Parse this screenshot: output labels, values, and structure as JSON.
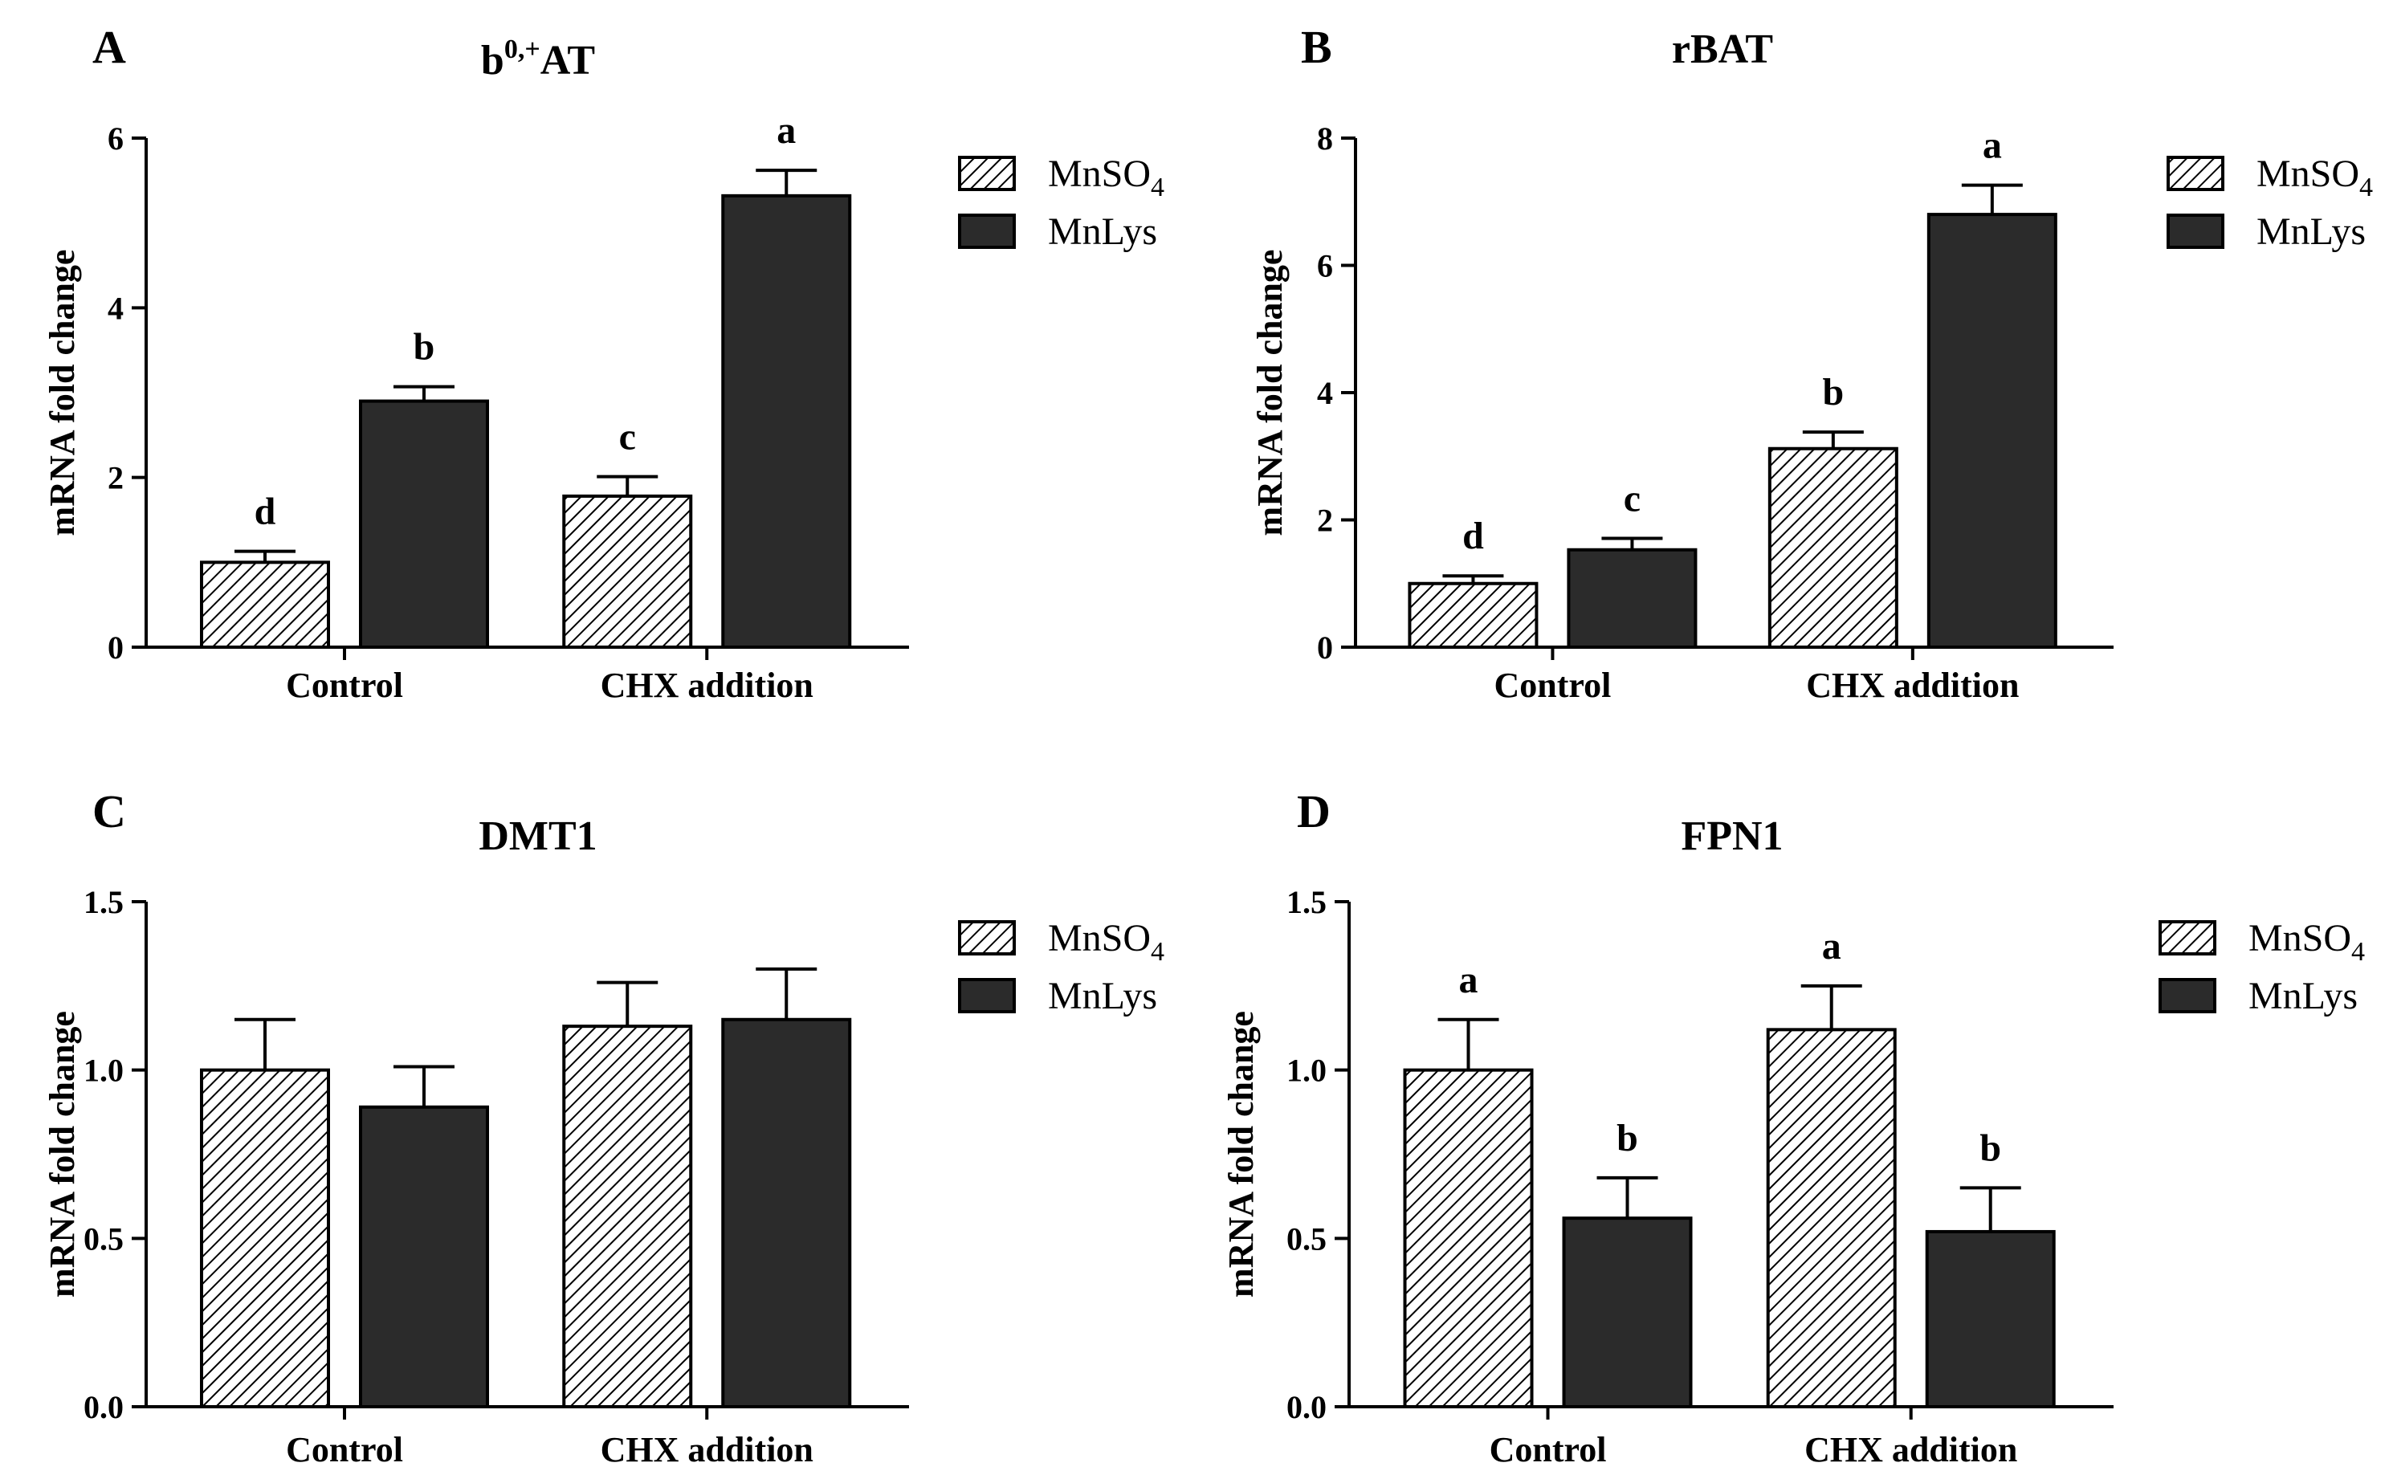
{
  "colors": {
    "ink": "#000000",
    "solid_fill": "#2b2b2b",
    "hatch_line": "#000000",
    "background": "#ffffff"
  },
  "legend": {
    "hatched": {
      "text": "MnSO",
      "subscript": "4"
    },
    "solid": {
      "text": "MnLys"
    }
  },
  "chart_data": [
    {
      "panel": "A",
      "type": "bar",
      "title": {
        "main": "b",
        "superscript": "0,+",
        "tail": "AT"
      },
      "ylabel": "mRNA fold change",
      "ylim": [
        0,
        6
      ],
      "yticks": [
        0,
        2,
        4,
        6
      ],
      "categories": [
        "Control",
        "CHX addition"
      ],
      "series": [
        {
          "name": "MnSO4",
          "style": "hatched",
          "values": [
            1.0,
            1.78
          ],
          "errors": [
            0.13,
            0.23
          ],
          "labels": [
            "d",
            "c"
          ]
        },
        {
          "name": "MnLys",
          "style": "solid",
          "values": [
            2.9,
            5.32
          ],
          "errors": [
            0.17,
            0.3
          ],
          "labels": [
            "b",
            "a"
          ]
        }
      ]
    },
    {
      "panel": "B",
      "type": "bar",
      "title": {
        "main": "rBAT"
      },
      "ylabel": "mRNA fold change",
      "ylim": [
        0,
        8
      ],
      "yticks": [
        0,
        2,
        4,
        6,
        8
      ],
      "categories": [
        "Control",
        "CHX addition"
      ],
      "series": [
        {
          "name": "MnSO4",
          "style": "hatched",
          "values": [
            1.0,
            3.12
          ],
          "errors": [
            0.12,
            0.26
          ],
          "labels": [
            "d",
            "b"
          ]
        },
        {
          "name": "MnLys",
          "style": "solid",
          "values": [
            1.53,
            6.8
          ],
          "errors": [
            0.18,
            0.46
          ],
          "labels": [
            "c",
            "a"
          ]
        }
      ]
    },
    {
      "panel": "C",
      "type": "bar",
      "title": {
        "main": "DMT1"
      },
      "ylabel": "mRNA fold change",
      "ylim": [
        0,
        1.5
      ],
      "yticks": [
        0.0,
        0.5,
        1.0,
        1.5
      ],
      "tickDecimals": 1,
      "categories": [
        "Control",
        "CHX addition"
      ],
      "series": [
        {
          "name": "MnSO4",
          "style": "hatched",
          "values": [
            1.0,
            1.13
          ],
          "errors": [
            0.15,
            0.13
          ],
          "labels": [
            "",
            ""
          ]
        },
        {
          "name": "MnLys",
          "style": "solid",
          "values": [
            0.89,
            1.15
          ],
          "errors": [
            0.12,
            0.15
          ],
          "labels": [
            "",
            ""
          ]
        }
      ]
    },
    {
      "panel": "D",
      "type": "bar",
      "title": {
        "main": "FPN1"
      },
      "ylabel": "mRNA fold change",
      "ylim": [
        0,
        1.5
      ],
      "yticks": [
        0.0,
        0.5,
        1.0,
        1.5
      ],
      "tickDecimals": 1,
      "categories": [
        "Control",
        "CHX addition"
      ],
      "series": [
        {
          "name": "MnSO4",
          "style": "hatched",
          "values": [
            1.0,
            1.12
          ],
          "errors": [
            0.15,
            0.13
          ],
          "labels": [
            "a",
            "a"
          ]
        },
        {
          "name": "MnLys",
          "style": "solid",
          "values": [
            0.56,
            0.52
          ],
          "errors": [
            0.12,
            0.13
          ],
          "labels": [
            "b",
            "b"
          ]
        }
      ]
    }
  ]
}
